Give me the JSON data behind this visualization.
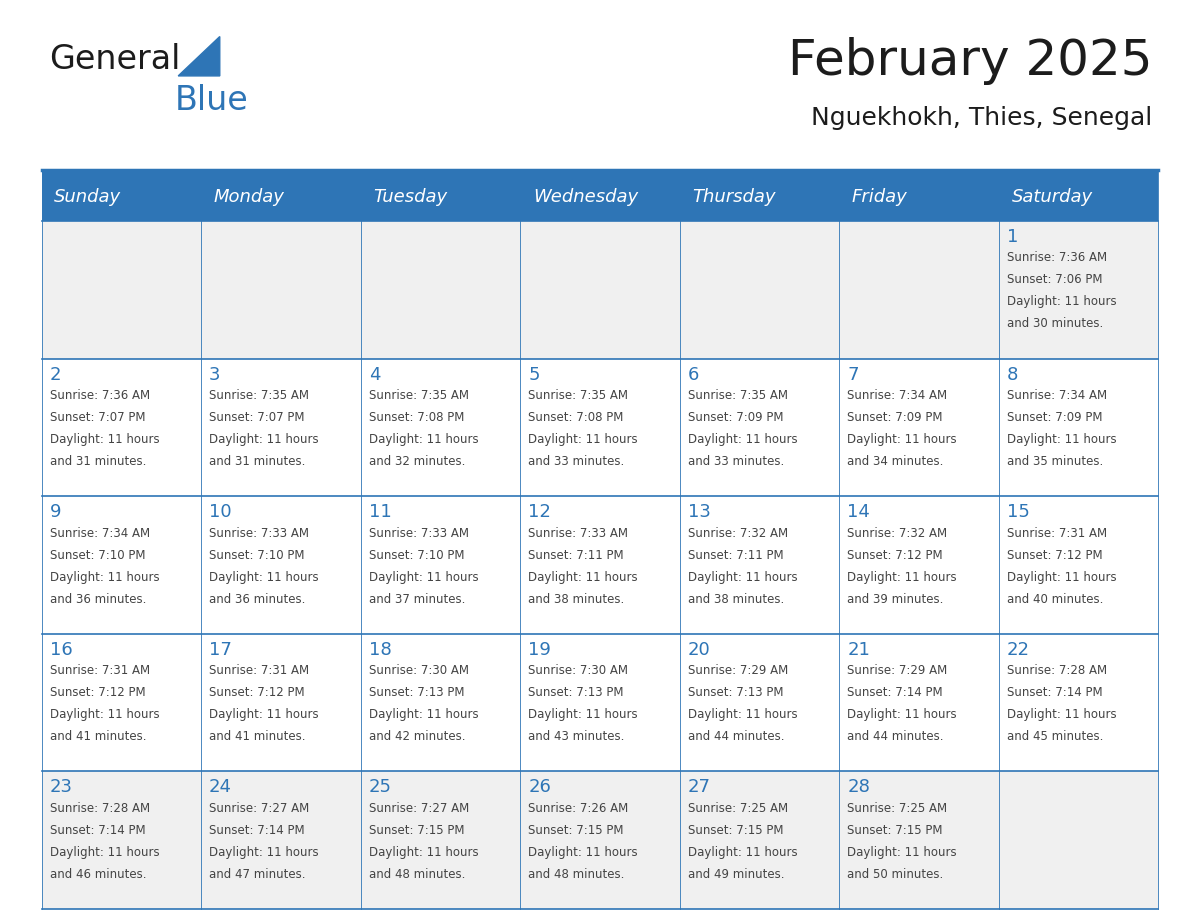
{
  "title": "February 2025",
  "subtitle": "Nguekhokh, Thies, Senegal",
  "header_bg_color": "#2E75B6",
  "header_text_color": "#FFFFFF",
  "cell_bg_white": "#FFFFFF",
  "cell_bg_gray": "#F0F0F0",
  "border_color": "#2E75B6",
  "day_number_color": "#2E75B6",
  "cell_text_color": "#444444",
  "days_of_week": [
    "Sunday",
    "Monday",
    "Tuesday",
    "Wednesday",
    "Thursday",
    "Friday",
    "Saturday"
  ],
  "row_bg_colors": [
    "#F0F0F0",
    "#FFFFFF",
    "#FFFFFF",
    "#FFFFFF",
    "#F0F0F0"
  ],
  "calendar_data": [
    [
      null,
      null,
      null,
      null,
      null,
      null,
      {
        "day": 1,
        "sunrise": "7:36 AM",
        "sunset": "7:06 PM",
        "daylight_h": "11 hours",
        "daylight_m": "and 30 minutes."
      }
    ],
    [
      {
        "day": 2,
        "sunrise": "7:36 AM",
        "sunset": "7:07 PM",
        "daylight_h": "11 hours",
        "daylight_m": "and 31 minutes."
      },
      {
        "day": 3,
        "sunrise": "7:35 AM",
        "sunset": "7:07 PM",
        "daylight_h": "11 hours",
        "daylight_m": "and 31 minutes."
      },
      {
        "day": 4,
        "sunrise": "7:35 AM",
        "sunset": "7:08 PM",
        "daylight_h": "11 hours",
        "daylight_m": "and 32 minutes."
      },
      {
        "day": 5,
        "sunrise": "7:35 AM",
        "sunset": "7:08 PM",
        "daylight_h": "11 hours",
        "daylight_m": "and 33 minutes."
      },
      {
        "day": 6,
        "sunrise": "7:35 AM",
        "sunset": "7:09 PM",
        "daylight_h": "11 hours",
        "daylight_m": "and 33 minutes."
      },
      {
        "day": 7,
        "sunrise": "7:34 AM",
        "sunset": "7:09 PM",
        "daylight_h": "11 hours",
        "daylight_m": "and 34 minutes."
      },
      {
        "day": 8,
        "sunrise": "7:34 AM",
        "sunset": "7:09 PM",
        "daylight_h": "11 hours",
        "daylight_m": "and 35 minutes."
      }
    ],
    [
      {
        "day": 9,
        "sunrise": "7:34 AM",
        "sunset": "7:10 PM",
        "daylight_h": "11 hours",
        "daylight_m": "and 36 minutes."
      },
      {
        "day": 10,
        "sunrise": "7:33 AM",
        "sunset": "7:10 PM",
        "daylight_h": "11 hours",
        "daylight_m": "and 36 minutes."
      },
      {
        "day": 11,
        "sunrise": "7:33 AM",
        "sunset": "7:10 PM",
        "daylight_h": "11 hours",
        "daylight_m": "and 37 minutes."
      },
      {
        "day": 12,
        "sunrise": "7:33 AM",
        "sunset": "7:11 PM",
        "daylight_h": "11 hours",
        "daylight_m": "and 38 minutes."
      },
      {
        "day": 13,
        "sunrise": "7:32 AM",
        "sunset": "7:11 PM",
        "daylight_h": "11 hours",
        "daylight_m": "and 38 minutes."
      },
      {
        "day": 14,
        "sunrise": "7:32 AM",
        "sunset": "7:12 PM",
        "daylight_h": "11 hours",
        "daylight_m": "and 39 minutes."
      },
      {
        "day": 15,
        "sunrise": "7:31 AM",
        "sunset": "7:12 PM",
        "daylight_h": "11 hours",
        "daylight_m": "and 40 minutes."
      }
    ],
    [
      {
        "day": 16,
        "sunrise": "7:31 AM",
        "sunset": "7:12 PM",
        "daylight_h": "11 hours",
        "daylight_m": "and 41 minutes."
      },
      {
        "day": 17,
        "sunrise": "7:31 AM",
        "sunset": "7:12 PM",
        "daylight_h": "11 hours",
        "daylight_m": "and 41 minutes."
      },
      {
        "day": 18,
        "sunrise": "7:30 AM",
        "sunset": "7:13 PM",
        "daylight_h": "11 hours",
        "daylight_m": "and 42 minutes."
      },
      {
        "day": 19,
        "sunrise": "7:30 AM",
        "sunset": "7:13 PM",
        "daylight_h": "11 hours",
        "daylight_m": "and 43 minutes."
      },
      {
        "day": 20,
        "sunrise": "7:29 AM",
        "sunset": "7:13 PM",
        "daylight_h": "11 hours",
        "daylight_m": "and 44 minutes."
      },
      {
        "day": 21,
        "sunrise": "7:29 AM",
        "sunset": "7:14 PM",
        "daylight_h": "11 hours",
        "daylight_m": "and 44 minutes."
      },
      {
        "day": 22,
        "sunrise": "7:28 AM",
        "sunset": "7:14 PM",
        "daylight_h": "11 hours",
        "daylight_m": "and 45 minutes."
      }
    ],
    [
      {
        "day": 23,
        "sunrise": "7:28 AM",
        "sunset": "7:14 PM",
        "daylight_h": "11 hours",
        "daylight_m": "and 46 minutes."
      },
      {
        "day": 24,
        "sunrise": "7:27 AM",
        "sunset": "7:14 PM",
        "daylight_h": "11 hours",
        "daylight_m": "and 47 minutes."
      },
      {
        "day": 25,
        "sunrise": "7:27 AM",
        "sunset": "7:15 PM",
        "daylight_h": "11 hours",
        "daylight_m": "and 48 minutes."
      },
      {
        "day": 26,
        "sunrise": "7:26 AM",
        "sunset": "7:15 PM",
        "daylight_h": "11 hours",
        "daylight_m": "and 48 minutes."
      },
      {
        "day": 27,
        "sunrise": "7:25 AM",
        "sunset": "7:15 PM",
        "daylight_h": "11 hours",
        "daylight_m": "and 49 minutes."
      },
      {
        "day": 28,
        "sunrise": "7:25 AM",
        "sunset": "7:15 PM",
        "daylight_h": "11 hours",
        "daylight_m": "and 50 minutes."
      },
      null
    ]
  ],
  "logo_text_general": "General",
  "logo_text_blue": "Blue",
  "logo_triangle_color": "#2E75B6",
  "title_fontsize": 36,
  "subtitle_fontsize": 18,
  "header_fontsize": 13,
  "day_num_fontsize": 13,
  "cell_text_fontsize": 8.5
}
